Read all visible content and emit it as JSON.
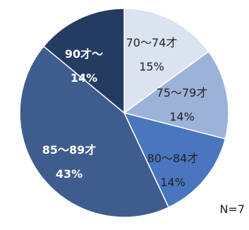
{
  "chart_data": {
    "type": "pie",
    "slices": [
      {
        "label": "70〜74才",
        "value": 15,
        "value_label": "15%",
        "color": "#dbe3f1"
      },
      {
        "label": "75〜79才",
        "value": 14,
        "value_label": "14%",
        "color": "#9db2d9"
      },
      {
        "label": "80〜84才",
        "value": 14,
        "value_label": "14%",
        "color": "#4a76bf"
      },
      {
        "label": "85〜89才",
        "value": 43,
        "value_label": "43%",
        "color": "#3e5d8e"
      },
      {
        "label": "90才〜",
        "value": 14,
        "value_label": "14%",
        "color": "#243c60"
      }
    ],
    "start_angle_deg": 0,
    "direction": "clockwise",
    "edge_color": "#ffffff",
    "note": "N=7"
  }
}
